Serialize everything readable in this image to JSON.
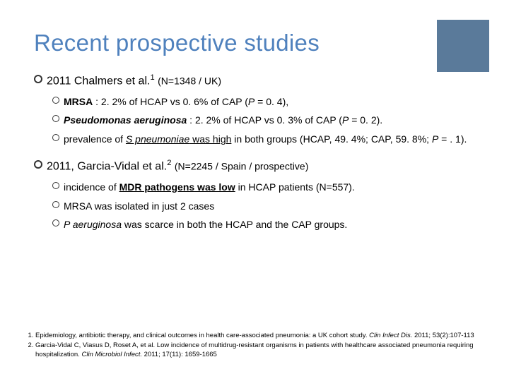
{
  "decor": {
    "color": "#5a7a9a",
    "width": 74,
    "height": 74
  },
  "title": "Recent prospective studies",
  "title_color": "#4f81bd",
  "studies": [
    {
      "year": "2011",
      "author": "Chalmers et al.",
      "sup": "1",
      "meta": "(N=1348 / UK)",
      "points": [
        {
          "lead_bold": "MRSA",
          "rest": " :  2. 2% of HCAP  vs 0. 6% of CAP (",
          "p_ital": "P",
          "tail": " = 0. 4),"
        },
        {
          "lead_bolditalic": "Pseudomonas aeruginosa",
          "rest": " : 2. 2% of HCAP vs 0. 3% of CAP (",
          "p_ital": "P",
          "tail": " = 0. 2)."
        },
        {
          "pre": "prevalence of ",
          "ital_und": "S pneumoniae",
          "post_und": " was high",
          "post": " in both groups (HCAP, 49. 4%; CAP, 59. 8%; ",
          "p_ital": "P",
          "tail": " = . 1)."
        }
      ]
    },
    {
      "year": "2011,",
      "author": "Garcia-Vidal et al.",
      "sup": "2",
      "meta": "(N=2245 / Spain / prospective)",
      "points": [
        {
          "pre": "incidence of ",
          "bold_und": "MDR pathogens was low",
          "post": " in HCAP patients (N=557)."
        },
        {
          "pre": "MRSA was isolated in just 2 cases"
        },
        {
          "ital_pre": "P aeruginosa",
          "post": " was scarce in both the HCAP and the CAP groups."
        }
      ]
    }
  ],
  "footnotes": [
    {
      "text": "Epidemiology, antibiotic therapy, and clinical outcomes in health care-associated pneumonia: a UK cohort study. ",
      "ital": "Clin Infect Dis.",
      "tail": " 2011; 53(2):107-113"
    },
    {
      "text": "Garcia-Vidal C, Viasus D, Roset A, et al. Low incidence of multidrug-resistant organisms in patients with healthcare associated pneumonia requiring hospitalization. ",
      "ital": "Clin Microbiol Infect.",
      "tail": " 2011; 17(11): 1659-1665"
    }
  ]
}
